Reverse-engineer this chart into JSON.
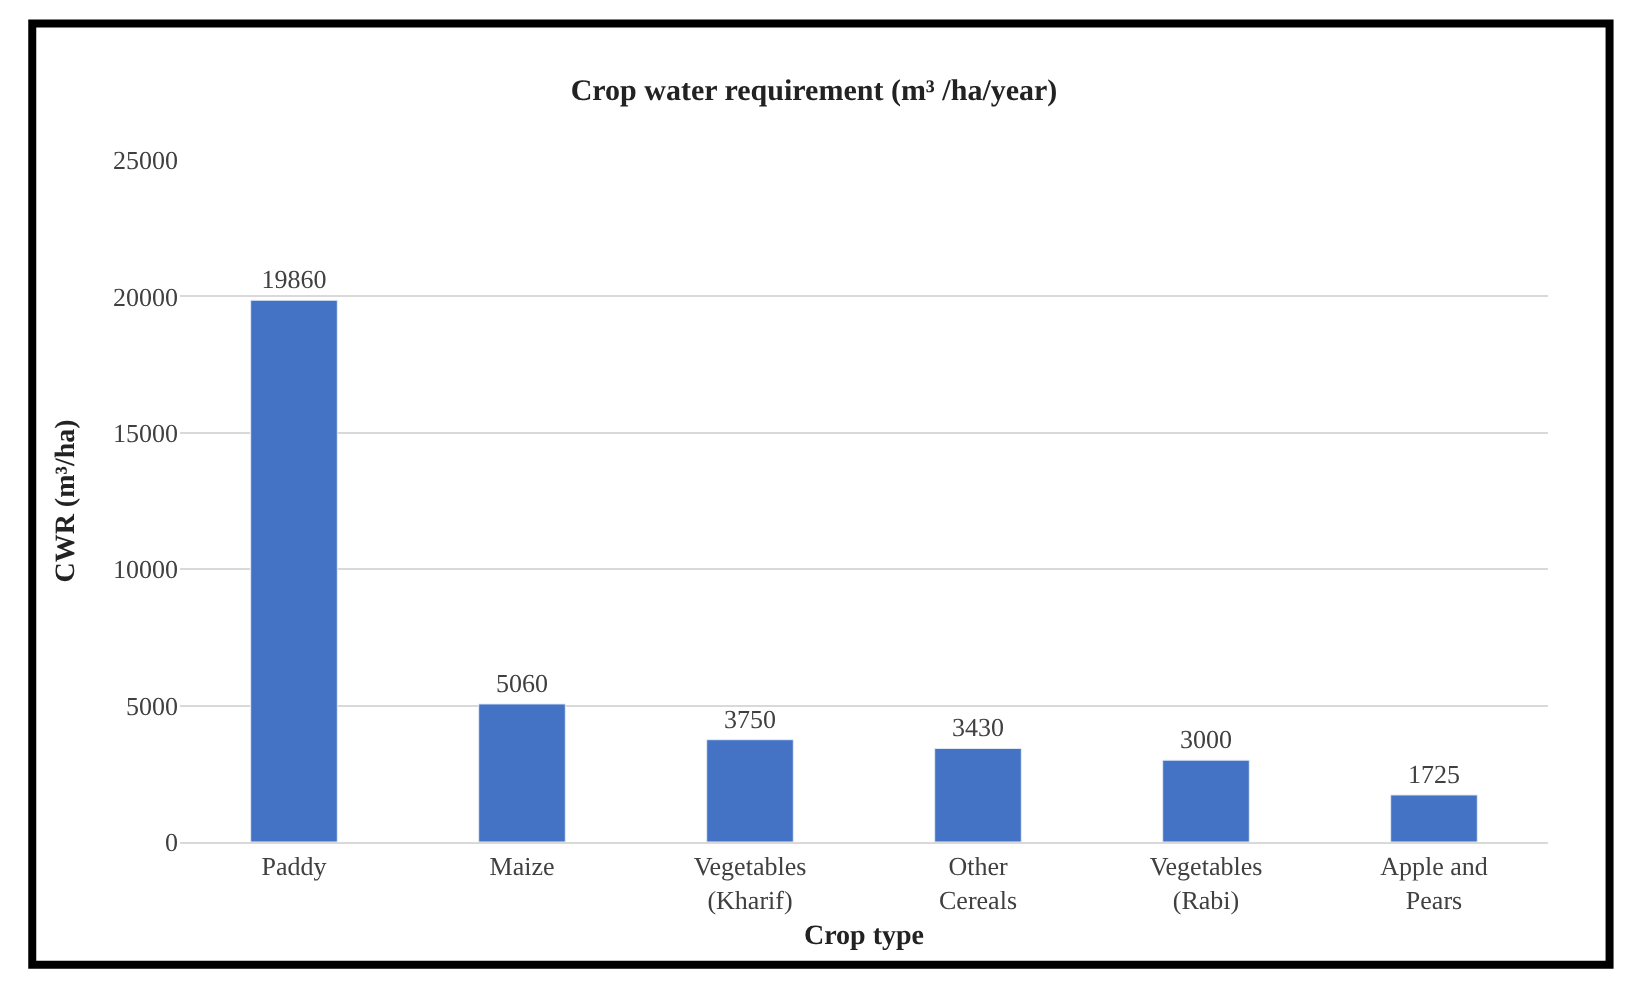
{
  "chart_data": {
    "type": "bar",
    "title": "Crop water requirement (m³ /ha/year)",
    "xlabel": "Crop type",
    "ylabel": "CWR (m³/ha)",
    "categories": [
      "Paddy",
      "Maize",
      "Vegetables\n(Kharif)",
      "Other\nCereals",
      "Vegetables\n(Rabi)",
      "Apple and\nPears"
    ],
    "values": [
      19860,
      5060,
      3750,
      3430,
      3000,
      1725
    ],
    "color": "#4472c4",
    "ylim": [
      0,
      25000
    ],
    "yticks": [
      0,
      5000,
      10000,
      15000,
      20000,
      25000
    ],
    "grid": "y",
    "data_labels": true
  }
}
